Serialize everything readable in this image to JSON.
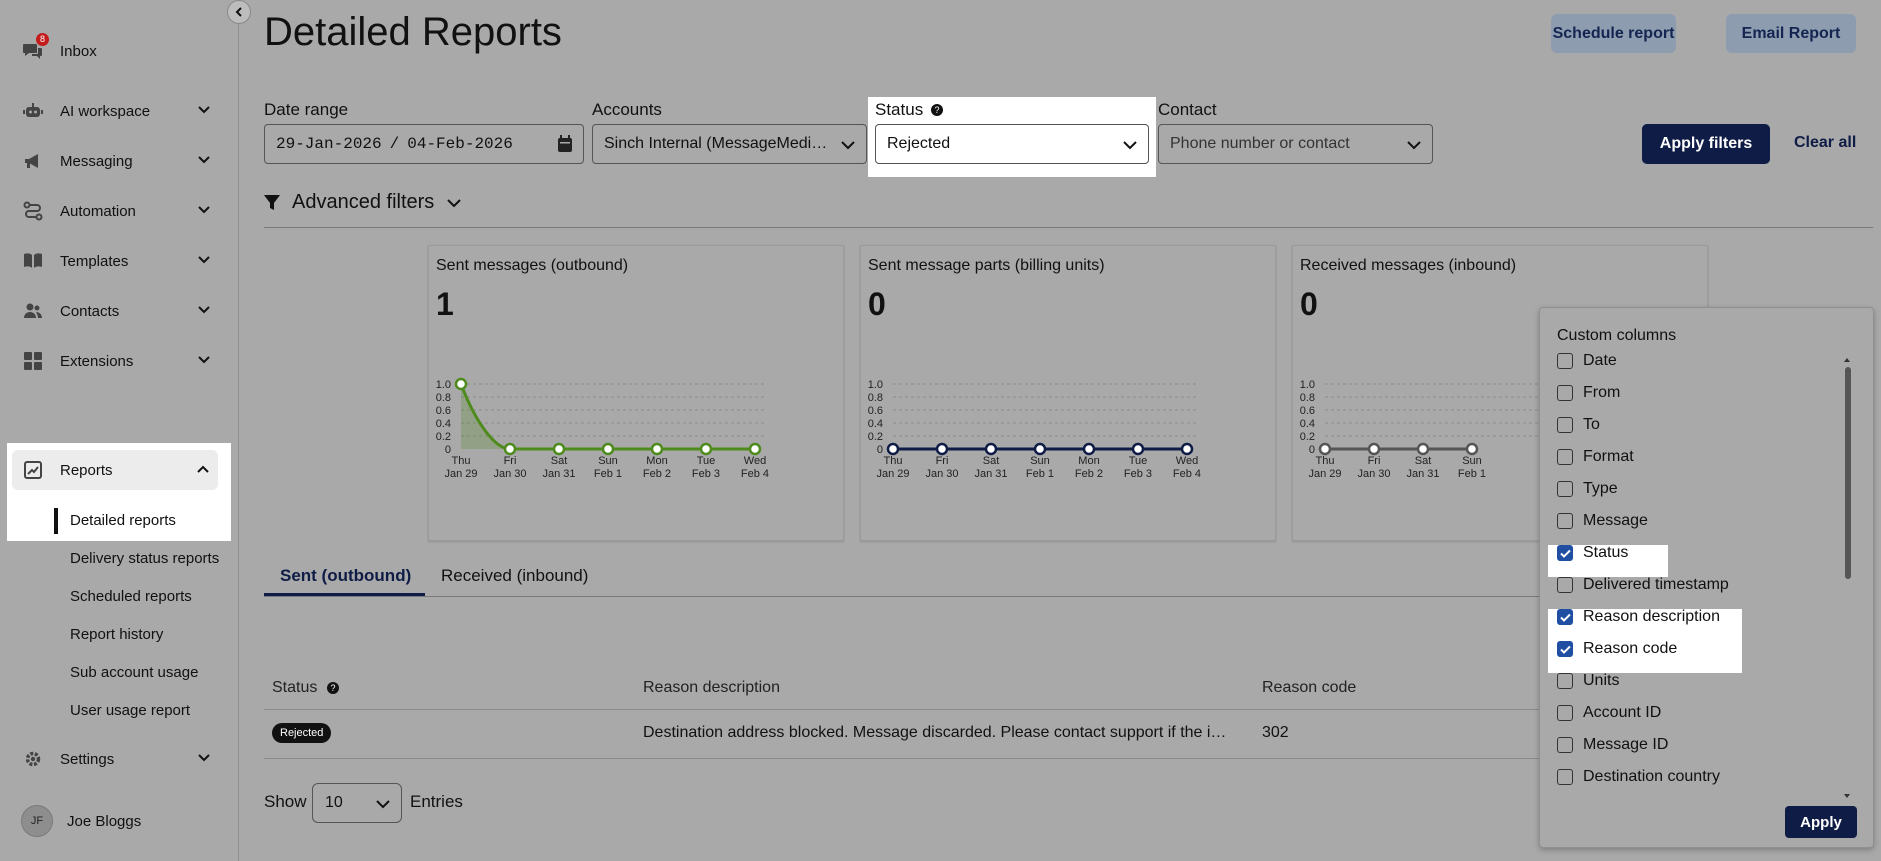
{
  "sidebar": {
    "inbox": {
      "label": "Inbox",
      "badge": "8"
    },
    "items": [
      {
        "label": "AI workspace",
        "icon": "robot-icon"
      },
      {
        "label": "Messaging",
        "icon": "megaphone-icon"
      },
      {
        "label": "Automation",
        "icon": "route-icon"
      },
      {
        "label": "Templates",
        "icon": "book-icon"
      },
      {
        "label": "Contacts",
        "icon": "people-icon"
      },
      {
        "label": "Extensions",
        "icon": "grid-icon"
      }
    ],
    "reports": {
      "label": "Reports",
      "active_sub": "Detailed reports",
      "subs": [
        "Delivery status reports",
        "Scheduled reports",
        "Report history",
        "Sub account usage",
        "User usage report"
      ]
    },
    "settings": "Settings",
    "user": {
      "initials": "JF",
      "name": "Joe Bloggs"
    }
  },
  "header": {
    "title": "Detailed Reports",
    "schedule_btn": "Schedule report",
    "email_btn": "Email Report"
  },
  "filters": {
    "date_range_label": "Date range",
    "date_start": "29-Jan-2026",
    "date_sep": "/",
    "date_end": "04-Feb-2026",
    "accounts_label": "Accounts",
    "accounts_value": "Sinch Internal (MessageMedi…",
    "status_label": "Status",
    "status_value": "Rejected",
    "contact_label": "Contact",
    "contact_placeholder": "Phone number or contact",
    "apply": "Apply filters",
    "clear": "Clear all",
    "advanced": "Advanced filters"
  },
  "chart_data": [
    {
      "type": "line",
      "title": "Sent messages (outbound)",
      "total": "1",
      "categories": [
        "Thu Jan 29",
        "Fri Jan 30",
        "Sat Jan 31",
        "Sun Feb 1",
        "Mon Feb 2",
        "Tue Feb 3",
        "Wed Feb 4"
      ],
      "series": [
        {
          "values": [
            1,
            0,
            0,
            0,
            0,
            0,
            0
          ],
          "color": "#4e8a1c",
          "area": true
        }
      ],
      "yticks": [
        "1.0",
        "0.8",
        "0.6",
        "0.4",
        "0.2",
        "0"
      ],
      "ylim": [
        0,
        1
      ]
    },
    {
      "type": "line",
      "title": "Sent message parts (billing units)",
      "total": "0",
      "categories": [
        "Thu Jan 29",
        "Fri Jan 30",
        "Sat Jan 31",
        "Sun Feb 1",
        "Mon Feb 2",
        "Tue Feb 3",
        "Wed Feb 4"
      ],
      "series": [
        {
          "values": [
            0,
            0,
            0,
            0,
            0,
            0,
            0
          ],
          "color": "#0f1c45"
        }
      ],
      "yticks": [
        "1.0",
        "0.8",
        "0.6",
        "0.4",
        "0.2",
        "0"
      ],
      "ylim": [
        0,
        1
      ]
    },
    {
      "type": "line",
      "title": "Received messages (inbound)",
      "total": "0",
      "categories": [
        "Thu Jan 29",
        "Fri Jan 30",
        "Sat Jan 31",
        "Sun Feb 1"
      ],
      "series": [
        {
          "values": [
            0,
            0,
            0,
            0
          ],
          "color": "#555555"
        }
      ],
      "yticks": [
        "1.0",
        "0.8",
        "0.6",
        "0.4",
        "0.2",
        "0"
      ],
      "ylim": [
        0,
        1
      ]
    }
  ],
  "tabs": {
    "sent": "Sent (outbound)",
    "received": "Received (inbound)"
  },
  "table": {
    "headers": {
      "status": "Status",
      "reason_description": "Reason description",
      "reason_code": "Reason code"
    },
    "rows": [
      {
        "status": "Rejected",
        "reason_description": "Destination address blocked. Message discarded. Please contact support if the i…",
        "reason_code": "302"
      }
    ]
  },
  "pagination": {
    "show": "Show",
    "value": "10",
    "entries": "Entries"
  },
  "custom_columns": {
    "title": "Custom columns",
    "items": [
      {
        "label": "Date",
        "checked": false
      },
      {
        "label": "From",
        "checked": false
      },
      {
        "label": "To",
        "checked": false
      },
      {
        "label": "Format",
        "checked": false
      },
      {
        "label": "Type",
        "checked": false
      },
      {
        "label": "Message",
        "checked": false
      },
      {
        "label": "Status",
        "checked": true
      },
      {
        "label": "Delivered timestamp",
        "checked": false
      },
      {
        "label": "Reason description",
        "checked": true
      },
      {
        "label": "Reason code",
        "checked": true
      },
      {
        "label": "Units",
        "checked": false
      },
      {
        "label": "Account ID",
        "checked": false
      },
      {
        "label": "Message ID",
        "checked": false
      },
      {
        "label": "Destination country",
        "checked": false
      }
    ],
    "apply": "Apply"
  }
}
